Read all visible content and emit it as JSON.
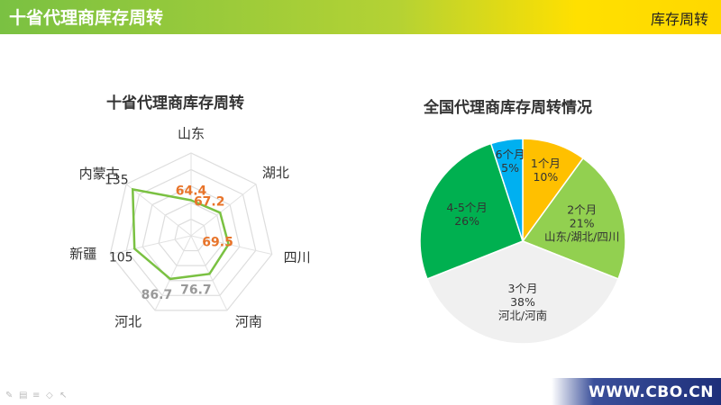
{
  "header": {
    "title": "十省代理商库存周转",
    "right_label": "库存周转"
  },
  "footer": {
    "url": "WWW.CBO.CN"
  },
  "colors": {
    "green": "#7ac142",
    "yellow": "#ffd800",
    "orange": "#e8742a",
    "gray": "#999999"
  },
  "chart_data": [
    {
      "type": "radar",
      "title": "十省代理商库存周转",
      "axes": [
        "山东",
        "湖北",
        "四川",
        "河南",
        "河北",
        "新疆",
        "内蒙古"
      ],
      "values": [
        64.4,
        67.2,
        69.5,
        76.7,
        86.7,
        105,
        135
      ],
      "value_labels": [
        "64.4",
        "67.2",
        "69.5",
        "76.7",
        "86.7",
        "105",
        "135"
      ],
      "max": 150,
      "rings": 5
    },
    {
      "type": "pie",
      "title": "全国代理商库存周转情况",
      "slices": [
        {
          "label": "1个月",
          "percent": 10,
          "percent_text": "10%",
          "note": "",
          "color": "#ffc000"
        },
        {
          "label": "2个月",
          "percent": 21,
          "percent_text": "21%",
          "note": "山东/湖北/四川",
          "color": "#92d050"
        },
        {
          "label": "3个月",
          "percent": 38,
          "percent_text": "38%",
          "note": "河北/河南",
          "color": "#f0f0f0"
        },
        {
          "label": "4-5个月",
          "percent": 26,
          "percent_text": "26%",
          "note": "",
          "color": "#00b050"
        },
        {
          "label": "6个月",
          "percent": 5,
          "percent_text": "5%",
          "note": "",
          "color": "#00b0f0"
        }
      ]
    }
  ]
}
